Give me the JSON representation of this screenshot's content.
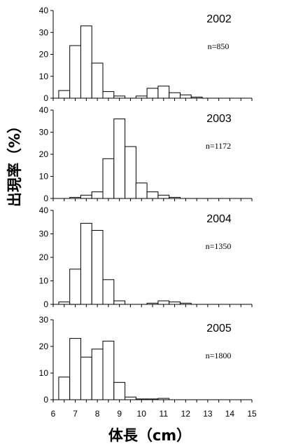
{
  "chart_data": {
    "type": "bar",
    "xlabel": "体長（cm）",
    "ylabel": "出現率（%）",
    "x_ticks": [
      "6",
      "7",
      "8",
      "9",
      "10",
      "11",
      "12",
      "13",
      "14",
      "15"
    ],
    "xlim": [
      6,
      15
    ],
    "bin_width": 0.5,
    "bins": [
      6.5,
      7.0,
      7.5,
      8.0,
      8.5,
      9.0,
      9.5,
      10.0,
      10.5,
      11.0,
      11.5,
      12.0,
      12.5
    ],
    "panels": [
      {
        "year": "2002",
        "n_label": "n=850",
        "ylim": [
          0,
          40
        ],
        "y_ticks": [
          "0",
          "10",
          "20",
          "30",
          "40"
        ],
        "values": [
          3.5,
          24,
          33,
          16,
          3,
          1,
          0,
          1,
          4.5,
          5.5,
          2.5,
          1.5,
          0.5
        ]
      },
      {
        "year": "2003",
        "n_label": "n=1172",
        "ylim": [
          0,
          40
        ],
        "y_ticks": [
          "0",
          "10",
          "20",
          "30",
          "40"
        ],
        "values": [
          0,
          0.5,
          1.5,
          3,
          18,
          36,
          23.5,
          7,
          3,
          1.5,
          0.5,
          0,
          0
        ]
      },
      {
        "year": "2004",
        "n_label": "n=1350",
        "ylim": [
          0,
          40
        ],
        "y_ticks": [
          "0",
          "10",
          "20",
          "30",
          "40"
        ],
        "values": [
          1,
          15,
          34.5,
          31.5,
          10.5,
          1.5,
          0,
          0,
          0.5,
          1.5,
          1,
          0.5,
          0
        ]
      },
      {
        "year": "2005",
        "n_label": "n=1800",
        "ylim": [
          0,
          30
        ],
        "y_ticks": [
          "0",
          "10",
          "20",
          "30"
        ],
        "values": [
          8.5,
          23,
          16,
          19,
          22,
          6.5,
          1,
          0.3,
          0.3,
          0.5,
          0,
          0,
          0
        ]
      }
    ]
  }
}
